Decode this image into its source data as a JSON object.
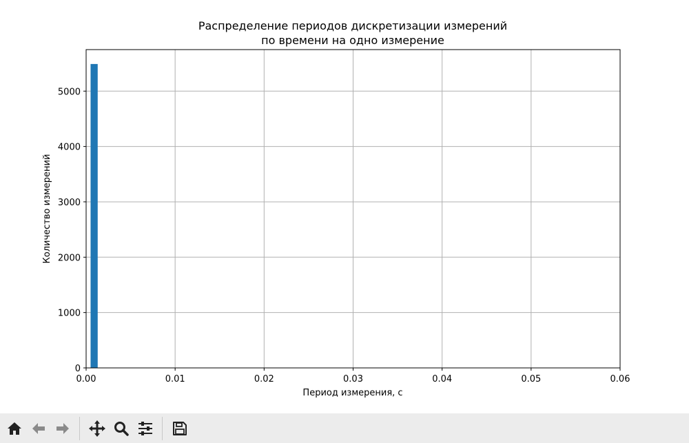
{
  "chart_data": {
    "type": "bar",
    "title_line1": "Распределение периодов дискретизации измерений",
    "title_line2": "по времени на одно измерение",
    "xlabel": "Период измерения, с",
    "ylabel": "Количество измерений",
    "xlim": [
      0,
      0.06
    ],
    "ylim": [
      0,
      5750
    ],
    "xticks": [
      0,
      0.01,
      0.02,
      0.03,
      0.04,
      0.05,
      0.06
    ],
    "xtick_labels": [
      "0.00",
      "0.01",
      "0.02",
      "0.03",
      "0.04",
      "0.05",
      "0.06"
    ],
    "yticks": [
      0,
      1000,
      2000,
      3000,
      4000,
      5000
    ],
    "ytick_labels": [
      "0",
      "1000",
      "2000",
      "3000",
      "4000",
      "5000"
    ],
    "grid": true,
    "bar_color": "#1f77b4",
    "bins": [
      {
        "x0": 0.0005,
        "x1": 0.0013,
        "count": 5490
      }
    ]
  },
  "toolbar": {
    "buttons": [
      {
        "name": "home-icon"
      },
      {
        "name": "back-arrow-icon"
      },
      {
        "name": "forward-arrow-icon"
      },
      {
        "name": "pan-icon"
      },
      {
        "name": "zoom-icon"
      },
      {
        "name": "configure-subplots-icon"
      },
      {
        "name": "save-icon"
      }
    ]
  }
}
